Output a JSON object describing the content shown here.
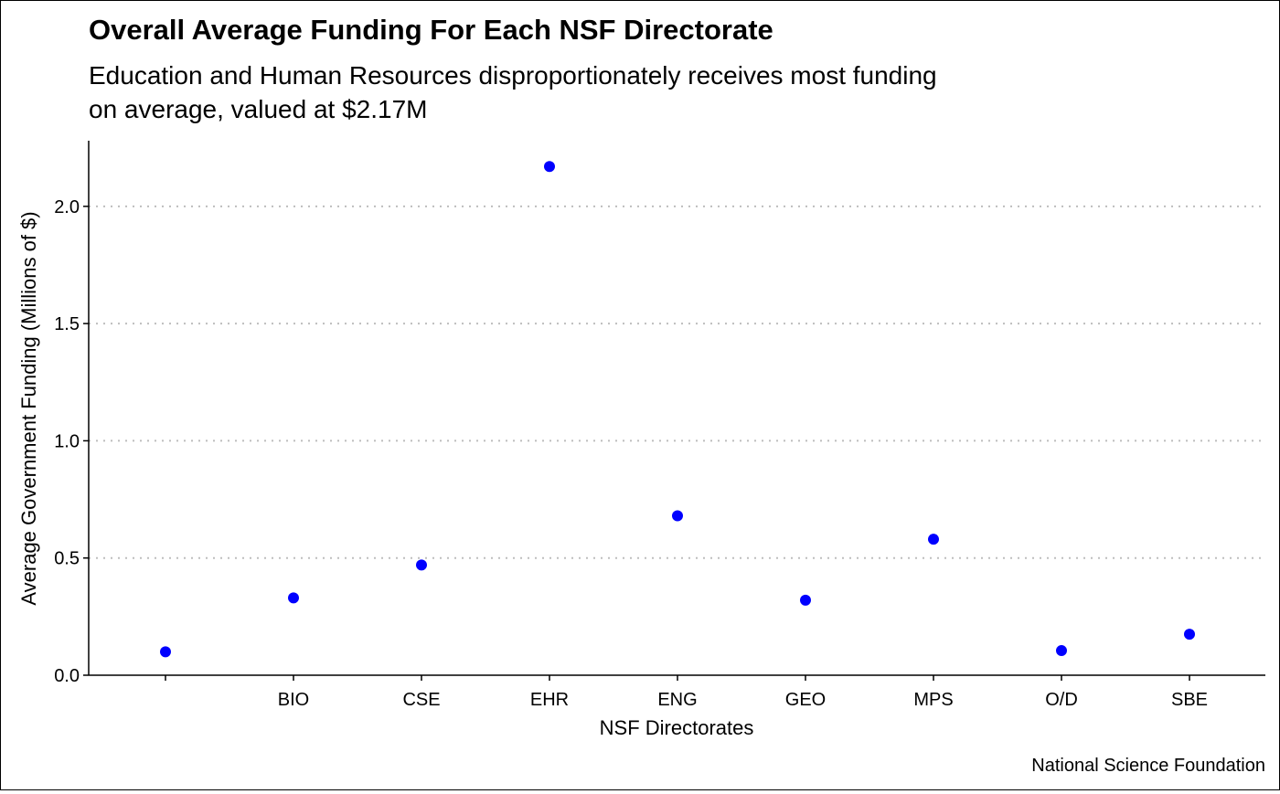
{
  "chart_data": {
    "type": "scatter",
    "title": "Overall Average Funding For Each NSF Directorate",
    "subtitle_lines": [
      "Education and Human Resources disproportionately receives most funding",
      "on average, valued at $2.17M"
    ],
    "xlabel": "NSF Directorates",
    "ylabel": "Average Government Funding (Millions of $)",
    "caption": "National Science Foundation",
    "categories": [
      "",
      "BIO",
      "CSE",
      "EHR",
      "ENG",
      "GEO",
      "MPS",
      "O/D",
      "SBE"
    ],
    "values": [
      0.1,
      0.33,
      0.47,
      2.17,
      0.68,
      0.32,
      0.58,
      0.105,
      0.175
    ],
    "ylim": [
      0,
      2.28
    ],
    "y_ticks": [
      0.0,
      0.5,
      1.0,
      1.5,
      2.0
    ],
    "y_tick_labels": [
      "0.0",
      "0.5",
      "1.0",
      "1.5",
      "2.0"
    ],
    "grid": "horizontal-dotted",
    "point_color": "#0000ff",
    "grid_color": "#bdbdbd"
  }
}
